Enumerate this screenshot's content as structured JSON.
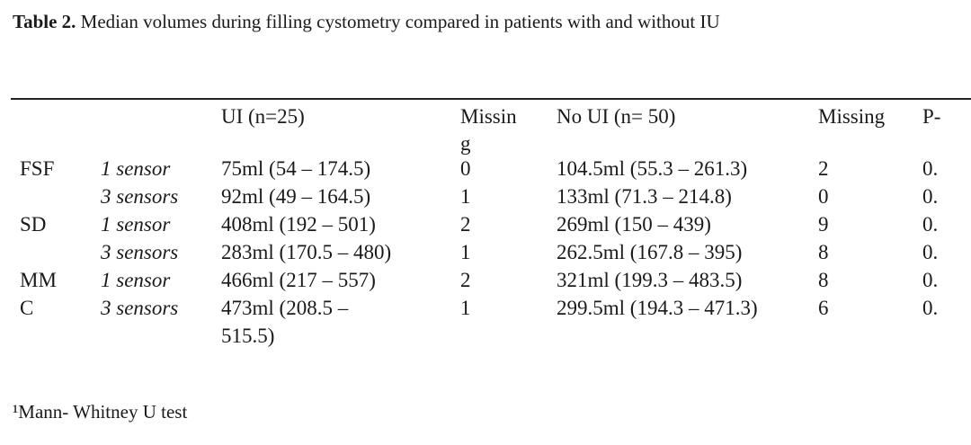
{
  "caption": {
    "label": "Table 2.",
    "text": "Median volumes during filling cystometry compared in patients with and without IU"
  },
  "headers": {
    "ui": "UI (n=25)",
    "missing1_a": "Missin",
    "missing1_b": "g",
    "noui": "No UI (n= 50)",
    "missing2": "Missing",
    "p": "P-"
  },
  "rows": [
    {
      "group": "FSF",
      "sensor": "1 sensor",
      "ui": "75ml (54 – 174.5)",
      "m1": "0",
      "noui": "104.5ml (55.3 – 261.3)",
      "m2": "2",
      "p": "0."
    },
    {
      "group": "",
      "sensor": "3 sensors",
      "ui": "92ml (49 – 164.5)",
      "m1": "1",
      "noui": "133ml (71.3 – 214.8)",
      "m2": "0",
      "p": "0."
    },
    {
      "group": "SD",
      "sensor": "1 sensor",
      "ui": "408ml (192 – 501)",
      "m1": "2",
      "noui": "269ml (150 – 439)",
      "m2": "9",
      "p": "0."
    },
    {
      "group": "",
      "sensor": "3 sensors",
      "ui": "283ml (170.5 – 480)",
      "m1": "1",
      "noui": "262.5ml (167.8 – 395)",
      "m2": "8",
      "p": "0."
    },
    {
      "group": "MM",
      "sensor": "1 sensor",
      "ui": "466ml (217 – 557)",
      "m1": "2",
      "noui": "321ml (199.3 – 483.5)",
      "m2": "8",
      "p": "0."
    },
    {
      "group": "C",
      "sensor": "3 sensors",
      "ui": "473ml (208.5 –",
      "m1": "1",
      "noui": "299.5ml (194.3 – 471.3)",
      "m2": "6",
      "p": "0."
    }
  ],
  "row6_wrap": "515.5)",
  "footnote": "¹Mann- Whitney U test"
}
